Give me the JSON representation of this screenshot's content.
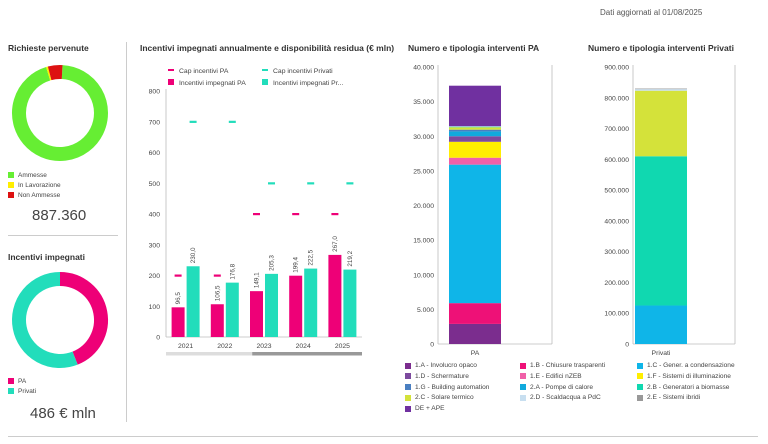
{
  "header": {
    "updated": "Dati aggiornati al 01/08/2025"
  },
  "richieste": {
    "title": "Richieste pervenute",
    "legend": [
      {
        "label": "Ammesse",
        "color": "#66ee33"
      },
      {
        "label": "In Lavorazione",
        "color": "#ffee00"
      },
      {
        "label": "Non Ammesse",
        "color": "#dd1111"
      }
    ],
    "total": "887.360"
  },
  "incentivi": {
    "title": "Incentivi impegnati",
    "legend": [
      {
        "label": "PA",
        "color": "#ee0077"
      },
      {
        "label": "Privati",
        "color": "#22ddbb"
      }
    ],
    "total": "486 € mln"
  },
  "chart_data": [
    {
      "type": "pie",
      "title": "Richieste pervenute",
      "labels": [
        "Ammesse",
        "In Lavorazione",
        "Non Ammesse"
      ],
      "values": [
        94.5,
        0.6,
        4.9
      ],
      "colors": [
        "#66ee33",
        "#ffee00",
        "#dd1111"
      ]
    },
    {
      "type": "pie",
      "title": "Incentivi impegnati",
      "labels": [
        "PA",
        "Privati"
      ],
      "values": [
        44,
        56
      ],
      "colors": [
        "#ee0077",
        "#22ddbb"
      ]
    },
    {
      "type": "bar",
      "title": "Incentivi impegnati annualmente e disponibilità residua (€ mln)",
      "categories": [
        "2021",
        "2022",
        "2023",
        "2024",
        "2025"
      ],
      "series": [
        {
          "name": "Incentivi impegnati PA",
          "values": [
            96.5,
            106.5,
            149.1,
            199.4,
            267.0
          ],
          "labels": [
            "96,5",
            "106,5",
            "149,1",
            "199,4",
            "267,0"
          ],
          "color": "#ee0077"
        },
        {
          "name": "Incentivi impegnati Pr...",
          "values": [
            230.0,
            176.8,
            205.3,
            222.5,
            219.2
          ],
          "labels": [
            "230,0",
            "176,8",
            "205,3",
            "222,5",
            "219,2"
          ],
          "color": "#22ddbb"
        }
      ],
      "caps": [
        {
          "name": "Cap incentivi PA",
          "values": [
            200,
            200,
            400,
            400,
            400
          ],
          "color": "#ee0077"
        },
        {
          "name": "Cap incentivi Privati",
          "values": [
            700,
            700,
            500,
            500,
            500
          ],
          "color": "#22ddbb"
        }
      ],
      "ylim": [
        0,
        800
      ],
      "yticks": [
        "0",
        "100",
        "200",
        "300",
        "400",
        "500",
        "600",
        "700",
        "800"
      ],
      "yticks_values": [
        0,
        100,
        200,
        300,
        400,
        500,
        600,
        700,
        800
      ]
    },
    {
      "type": "bar",
      "stacked": true,
      "title": "Numero e tipologia interventi PA",
      "categories": [
        "PA"
      ],
      "ylim": [
        0,
        40000
      ],
      "yticks": [
        "0",
        "5.000",
        "10.000",
        "15.000",
        "20.000",
        "25.000",
        "30.000",
        "35.000",
        "40.000"
      ],
      "yticks_values": [
        0,
        5000,
        10000,
        15000,
        20000,
        25000,
        30000,
        35000,
        40000
      ],
      "segments": [
        {
          "name": "1.A - Involucro opaco",
          "value": 2900,
          "color": "#7b2d8e"
        },
        {
          "name": "1.B - Chiusure trasparenti",
          "value": 3000,
          "color": "#ee1177"
        },
        {
          "name": "1.C - Gener. a condensazione",
          "value": 20000,
          "color": "#0fb5e8"
        },
        {
          "name": "1.E - Edifici nZEB",
          "value": 1000,
          "color": "#f060a8"
        },
        {
          "name": "1.F - Sistemi di illuminazione",
          "value": 2300,
          "color": "#ffee00"
        },
        {
          "name": "1.D - Schermature",
          "value": 800,
          "color": "#7c4a9e"
        },
        {
          "name": "2.A - Pompe di calore",
          "value": 700,
          "color": "#11aadd"
        },
        {
          "name": "1.G - Building automation",
          "value": 250,
          "color": "#4a7fc1"
        },
        {
          "name": "2.C - Solare termico",
          "value": 350,
          "color": "#d4e23a"
        },
        {
          "name": "2.B - Generatori a biomasse",
          "value": 100,
          "color": "#10d8b0"
        },
        {
          "name": "2.D - Scaldacqua a PdC",
          "value": 50,
          "color": "#c8dff0"
        },
        {
          "name": "DE + APE",
          "value": 5850,
          "color": "#7030a0"
        }
      ]
    },
    {
      "type": "bar",
      "stacked": true,
      "title": "Numero e tipologia interventi Privati",
      "categories": [
        "Privati"
      ],
      "ylim": [
        0,
        900000
      ],
      "yticks": [
        "0",
        "100.000",
        "200.000",
        "300.000",
        "400.000",
        "500.000",
        "600.000",
        "700.000",
        "800.000",
        "900.000"
      ],
      "yticks_values": [
        0,
        100000,
        200000,
        300000,
        400000,
        500000,
        600000,
        700000,
        800000,
        900000
      ],
      "segments": [
        {
          "name": "1.C - Gener. a condensazione",
          "value": 125000,
          "color": "#0fb5e8"
        },
        {
          "name": "2.B - Generatori a biomasse",
          "value": 485000,
          "color": "#10d8b0"
        },
        {
          "name": "2.C - Solare termico",
          "value": 213000,
          "color": "#d4e23a"
        },
        {
          "name": "2.D - Scaldacqua a PdC",
          "value": 5000,
          "color": "#c8dff0"
        },
        {
          "name": "2.E - Sistemi ibridi",
          "value": 2000,
          "color": "#999999"
        }
      ]
    }
  ],
  "legend_pp": [
    {
      "label": "1.A - Involucro opaco",
      "color": "#7b2d8e"
    },
    {
      "label": "1.B - Chiusure trasparenti",
      "color": "#ee1177"
    },
    {
      "label": "1.C - Gener. a condensazione",
      "color": "#0fb5e8"
    },
    {
      "label": "1.D - Schermature",
      "color": "#7c4a9e"
    },
    {
      "label": "1.E - Edifici nZEB",
      "color": "#f060a8"
    },
    {
      "label": "1.F - Sistemi di illuminazione",
      "color": "#ffee00"
    },
    {
      "label": "1.G - Building automation",
      "color": "#4a7fc1"
    },
    {
      "label": "2.A - Pompe di calore",
      "color": "#11aadd"
    },
    {
      "label": "2.B - Generatori a biomasse",
      "color": "#10d8b0"
    },
    {
      "label": "2.C - Solare termico",
      "color": "#d4e23a"
    },
    {
      "label": "2.D - Scaldacqua a PdC",
      "color": "#c8dff0"
    },
    {
      "label": "2.E - Sistemi ibridi",
      "color": "#999999"
    },
    {
      "label": "DE + APE",
      "color": "#7030a0"
    }
  ]
}
